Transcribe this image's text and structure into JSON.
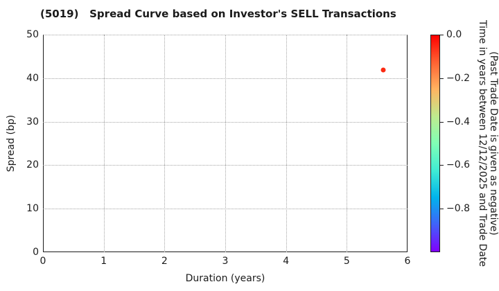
{
  "chart_data": {
    "type": "scatter",
    "title": "(5019)   Spread Curve based on Investor's SELL Transactions",
    "xlabel": "Duration (years)",
    "ylabel": "Spread (bp)",
    "xlim": [
      0,
      6
    ],
    "ylim": [
      0,
      50
    ],
    "xticks": [
      0,
      1,
      2,
      3,
      4,
      5,
      6
    ],
    "yticks": [
      0,
      10,
      20,
      30,
      40,
      50
    ],
    "grid": true,
    "grid_style": "dotted",
    "legend": "none",
    "points": [
      {
        "x": 5.6,
        "y": 41.8,
        "color_value": 0.0,
        "color": "#fb2a12"
      }
    ],
    "colorbar": {
      "label_line1": "Time in years between 12/12/2025 and Trade Date",
      "label_line2": "(Past Trade Date is given as negative)",
      "range": [
        0.0,
        -1.0
      ],
      "ticks": [
        {
          "label": "0.0",
          "value": 0.0
        },
        {
          "label": "−0.2",
          "value": -0.2
        },
        {
          "label": "−0.4",
          "value": -0.4
        },
        {
          "label": "−0.6",
          "value": -0.6
        },
        {
          "label": "−0.8",
          "value": -0.8
        }
      ],
      "colormap": "rainbow (0.0 = red, −1.0 = violet)",
      "gradient_colors": [
        "#ff0000",
        "#ff6232",
        "#ffb461",
        "#bfeb8e",
        "#80ffb5",
        "#40ecd4",
        "#00b4ec",
        "#4062fa",
        "#8000ff"
      ]
    },
    "colors": {
      "spine": "#1a1a1a",
      "grid": "#a3a3a3",
      "text": "#1a1a1a",
      "background": "#ffffff"
    }
  }
}
